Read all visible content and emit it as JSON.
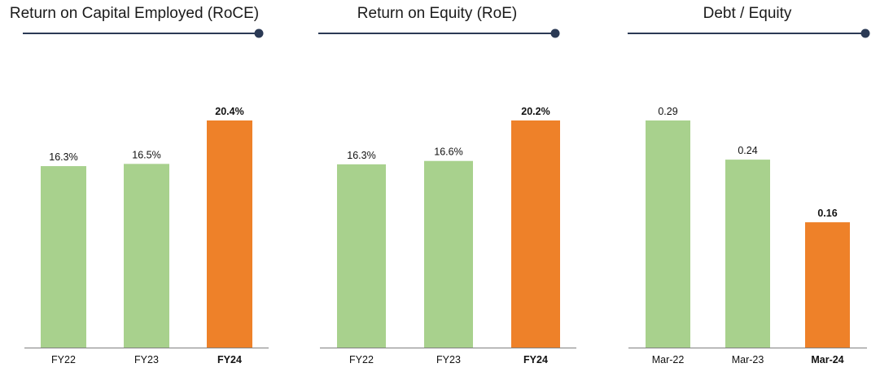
{
  "colors": {
    "normal": "#a8d18d",
    "highlight": "#ee8129",
    "title_line": "#2b3a55",
    "axis": "#7f7f7f"
  },
  "chart_data": [
    {
      "type": "bar",
      "title": "Return on Capital Employed (RoCE)",
      "categories": [
        "FY22",
        "FY23",
        "FY24"
      ],
      "values": [
        16.3,
        16.5,
        20.4
      ],
      "value_labels": [
        "16.3%",
        "16.5%",
        "20.4%"
      ],
      "highlight_index": 2,
      "ylim": [
        0,
        20.4
      ]
    },
    {
      "type": "bar",
      "title": "Return on Equity (RoE)",
      "categories": [
        "FY22",
        "FY23",
        "FY24"
      ],
      "values": [
        16.3,
        16.6,
        20.2
      ],
      "value_labels": [
        "16.3%",
        "16.6%",
        "20.2%"
      ],
      "highlight_index": 2,
      "ylim": [
        0,
        20.2
      ]
    },
    {
      "type": "bar",
      "title": "Debt / Equity",
      "categories": [
        "Mar-22",
        "Mar-23",
        "Mar-24"
      ],
      "values": [
        0.29,
        0.24,
        0.16
      ],
      "value_labels": [
        "0.29",
        "0.24",
        "0.16"
      ],
      "highlight_index": 2,
      "ylim": [
        0,
        0.29
      ]
    }
  ]
}
